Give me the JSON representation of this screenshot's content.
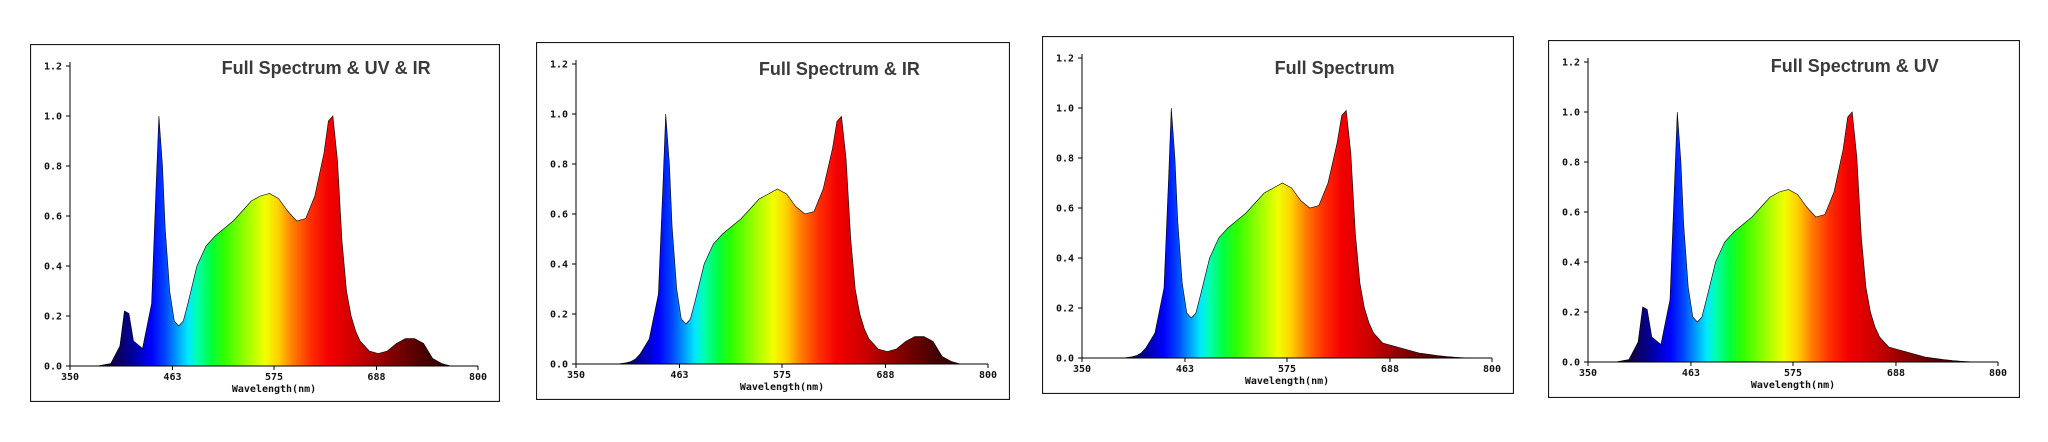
{
  "chart_data": [
    {
      "type": "area",
      "title": "Full Spectrum & UV & IR",
      "xlabel": "Wavelength(nm)",
      "xlim": [
        350,
        800
      ],
      "ylim": [
        0,
        1.2
      ],
      "xticks": [
        "350",
        "463",
        "575",
        "688",
        "800"
      ],
      "yticks": [
        "0.0",
        "0.2",
        "0.4",
        "0.6",
        "0.8",
        "1.0",
        "1.2"
      ],
      "x": [
        350,
        380,
        395,
        405,
        410,
        415,
        420,
        430,
        440,
        445,
        448,
        452,
        455,
        460,
        465,
        470,
        475,
        480,
        490,
        500,
        510,
        520,
        530,
        540,
        550,
        560,
        570,
        580,
        590,
        600,
        610,
        620,
        630,
        635,
        640,
        645,
        650,
        655,
        660,
        665,
        670,
        675,
        680,
        690,
        700,
        710,
        720,
        730,
        740,
        745,
        750,
        760,
        770,
        800
      ],
      "series": [
        {
          "values": [
            0,
            0,
            0.01,
            0.08,
            0.22,
            0.21,
            0.1,
            0.07,
            0.25,
            0.72,
            1.0,
            0.8,
            0.55,
            0.3,
            0.18,
            0.16,
            0.18,
            0.25,
            0.4,
            0.48,
            0.52,
            0.55,
            0.58,
            0.62,
            0.66,
            0.68,
            0.69,
            0.67,
            0.62,
            0.58,
            0.59,
            0.68,
            0.85,
            0.98,
            1.0,
            0.82,
            0.5,
            0.3,
            0.2,
            0.14,
            0.1,
            0.08,
            0.06,
            0.05,
            0.06,
            0.09,
            0.11,
            0.11,
            0.09,
            0.06,
            0.03,
            0.01,
            0,
            0
          ]
        }
      ]
    },
    {
      "type": "area",
      "title": "Full Spectrum & IR",
      "xlabel": "Wavelength(nm)",
      "xlim": [
        350,
        800
      ],
      "ylim": [
        0,
        1.2
      ],
      "xticks": [
        "350",
        "463",
        "575",
        "688",
        "800"
      ],
      "yticks": [
        "0.0",
        "0.2",
        "0.4",
        "0.6",
        "0.8",
        "1.0",
        "1.2"
      ],
      "x": [
        350,
        380,
        395,
        405,
        410,
        415,
        420,
        430,
        440,
        445,
        448,
        452,
        455,
        460,
        465,
        470,
        475,
        480,
        490,
        500,
        510,
        520,
        530,
        540,
        550,
        560,
        570,
        580,
        590,
        600,
        610,
        620,
        630,
        635,
        640,
        645,
        650,
        655,
        660,
        665,
        670,
        675,
        680,
        690,
        700,
        710,
        720,
        730,
        740,
        745,
        750,
        760,
        770,
        800
      ],
      "series": [
        {
          "values": [
            0,
            0,
            0,
            0.005,
            0.01,
            0.02,
            0.04,
            0.1,
            0.28,
            0.72,
            1.0,
            0.8,
            0.55,
            0.3,
            0.18,
            0.16,
            0.18,
            0.25,
            0.4,
            0.48,
            0.52,
            0.55,
            0.58,
            0.62,
            0.66,
            0.68,
            0.7,
            0.68,
            0.63,
            0.6,
            0.61,
            0.7,
            0.86,
            0.97,
            0.99,
            0.82,
            0.5,
            0.3,
            0.2,
            0.14,
            0.1,
            0.08,
            0.06,
            0.05,
            0.06,
            0.09,
            0.11,
            0.11,
            0.09,
            0.06,
            0.03,
            0.01,
            0,
            0
          ]
        }
      ]
    },
    {
      "type": "area",
      "title": "Full Spectrum",
      "xlabel": "Wavelength(nm)",
      "xlim": [
        350,
        800
      ],
      "ylim": [
        0,
        1.2
      ],
      "xticks": [
        "350",
        "463",
        "575",
        "688",
        "800"
      ],
      "yticks": [
        "0.0",
        "0.2",
        "0.4",
        "0.6",
        "0.8",
        "1.0",
        "1.2"
      ],
      "x": [
        350,
        380,
        395,
        405,
        410,
        415,
        420,
        430,
        440,
        445,
        448,
        452,
        455,
        460,
        465,
        470,
        475,
        480,
        490,
        500,
        510,
        520,
        530,
        540,
        550,
        560,
        570,
        580,
        590,
        600,
        610,
        620,
        630,
        635,
        640,
        645,
        650,
        655,
        660,
        665,
        670,
        675,
        680,
        690,
        700,
        710,
        720,
        730,
        740,
        745,
        750,
        760,
        770,
        800
      ],
      "series": [
        {
          "values": [
            0,
            0,
            0,
            0.005,
            0.01,
            0.02,
            0.04,
            0.1,
            0.28,
            0.72,
            1.0,
            0.8,
            0.55,
            0.3,
            0.18,
            0.16,
            0.18,
            0.25,
            0.4,
            0.48,
            0.52,
            0.55,
            0.58,
            0.62,
            0.66,
            0.68,
            0.7,
            0.68,
            0.63,
            0.6,
            0.61,
            0.7,
            0.86,
            0.97,
            0.99,
            0.82,
            0.5,
            0.3,
            0.2,
            0.14,
            0.1,
            0.08,
            0.06,
            0.05,
            0.04,
            0.03,
            0.02,
            0.015,
            0.01,
            0.008,
            0.006,
            0.003,
            0.001,
            0
          ]
        }
      ]
    },
    {
      "type": "area",
      "title": "Full Spectrum & UV",
      "xlabel": "Wavelength(nm)",
      "xlim": [
        350,
        800
      ],
      "ylim": [
        0,
        1.2
      ],
      "xticks": [
        "350",
        "463",
        "575",
        "688",
        "800"
      ],
      "yticks": [
        "0.0",
        "0.2",
        "0.4",
        "0.6",
        "0.8",
        "1.0",
        "1.2"
      ],
      "x": [
        350,
        380,
        395,
        405,
        410,
        415,
        420,
        430,
        440,
        445,
        448,
        452,
        455,
        460,
        465,
        470,
        475,
        480,
        490,
        500,
        510,
        520,
        530,
        540,
        550,
        560,
        570,
        580,
        590,
        600,
        610,
        620,
        630,
        635,
        640,
        645,
        650,
        655,
        660,
        665,
        670,
        675,
        680,
        690,
        700,
        710,
        720,
        730,
        740,
        745,
        750,
        760,
        770,
        800
      ],
      "series": [
        {
          "values": [
            0,
            0,
            0.01,
            0.08,
            0.22,
            0.21,
            0.1,
            0.07,
            0.25,
            0.72,
            1.0,
            0.8,
            0.55,
            0.3,
            0.18,
            0.16,
            0.18,
            0.25,
            0.4,
            0.48,
            0.52,
            0.55,
            0.58,
            0.62,
            0.66,
            0.68,
            0.69,
            0.67,
            0.62,
            0.58,
            0.59,
            0.68,
            0.85,
            0.98,
            1.0,
            0.82,
            0.5,
            0.3,
            0.2,
            0.14,
            0.1,
            0.08,
            0.06,
            0.05,
            0.04,
            0.03,
            0.02,
            0.015,
            0.01,
            0.008,
            0.006,
            0.003,
            0.001,
            0
          ]
        }
      ]
    }
  ]
}
